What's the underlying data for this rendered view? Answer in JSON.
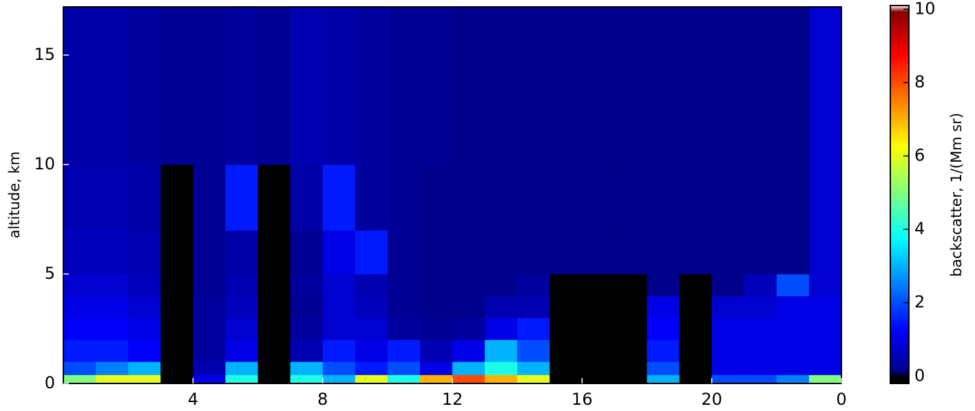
{
  "chart_data": {
    "type": "heatmap",
    "ylabel": "altitude, km",
    "colormap": "jet",
    "x_edges": [
      0,
      1,
      2,
      3,
      4,
      5,
      6,
      7,
      8,
      9,
      10,
      11,
      12,
      13,
      14,
      15,
      16,
      17,
      18,
      19,
      20,
      21,
      22,
      23,
      24
    ],
    "y_edges": [
      0,
      0.4,
      1,
      2,
      3,
      4,
      5,
      7,
      10,
      17.2
    ],
    "values": [
      [
        5,
        2,
        1.5,
        1.2,
        1,
        0.8,
        0.6,
        0.5,
        0.4
      ],
      [
        6,
        2.5,
        1.5,
        1.2,
        1,
        0.8,
        0.6,
        0.5,
        0.4
      ],
      [
        6,
        3,
        1.2,
        1,
        0.8,
        0.6,
        0.5,
        0.4,
        0.3
      ],
      [
        0,
        0,
        0,
        0,
        0,
        0,
        0,
        0,
        0.2
      ],
      [
        1,
        0.5,
        0.3,
        0.3,
        0.3,
        0.2,
        0.2,
        0.2,
        0.2
      ],
      [
        4,
        3,
        1,
        0.8,
        0.6,
        0.5,
        0.4,
        1.5,
        0.3
      ],
      [
        0,
        0,
        0,
        0,
        0,
        0,
        0,
        0,
        0.2
      ],
      [
        4,
        3,
        0.5,
        0.3,
        0.2,
        0.3,
        0.2,
        0.4,
        0.5
      ],
      [
        3,
        2,
        1.5,
        0.8,
        0.8,
        0.8,
        1,
        1.5,
        0.4
      ],
      [
        6,
        1.5,
        1,
        0.8,
        0.6,
        0.5,
        1.5,
        0.3,
        0.3
      ],
      [
        4,
        2,
        1.5,
        0.3,
        0.2,
        0.2,
        0.2,
        0.2,
        0.2
      ],
      [
        7,
        1,
        0.5,
        0.2,
        0.1,
        0.1,
        0.1,
        0.1,
        0.2
      ],
      [
        8,
        3,
        1,
        0.3,
        0.1,
        0.1,
        0.1,
        0.1,
        0.1
      ],
      [
        7,
        4,
        3,
        1,
        0.5,
        0.1,
        0.1,
        0.1,
        0.1
      ],
      [
        6,
        3,
        2,
        1.5,
        0.5,
        0.3,
        0.1,
        0.1,
        0.1
      ],
      [
        0,
        0,
        0,
        0,
        0,
        0,
        0.1,
        0.1,
        0.1
      ],
      [
        0,
        0,
        0,
        0,
        0,
        0,
        0.1,
        0.1,
        0.1
      ],
      [
        0,
        0,
        0,
        0,
        0,
        0,
        0.1,
        0.1,
        0.1
      ],
      [
        3,
        2,
        1.5,
        1.2,
        1,
        0.1,
        0.1,
        0.1,
        0.1
      ],
      [
        0,
        0,
        0,
        0,
        0,
        0,
        0.1,
        0.1,
        0.1
      ],
      [
        2,
        1,
        1,
        1,
        0.8,
        0.1,
        0.1,
        0.1,
        0.1
      ],
      [
        2,
        1,
        1,
        1,
        0.8,
        0.6,
        0.1,
        0.1,
        0.1
      ],
      [
        2.5,
        1,
        1,
        1,
        1,
        2,
        0.1,
        0.1,
        0.1
      ],
      [
        5,
        1,
        1,
        1,
        1,
        0.8,
        0.8,
        0.8,
        0.8
      ]
    ],
    "xlim": [
      0,
      24
    ],
    "xticks": [
      4,
      8,
      12,
      16,
      20,
      {
        "value": 24,
        "label": "0"
      }
    ],
    "ylim": [
      0,
      17.2
    ],
    "yticks": [
      0,
      5,
      10,
      15
    ],
    "colorbar": {
      "label": "backscatter, 1/(Mm sr)",
      "lim": [
        -0.2,
        10.1
      ],
      "ticks": [
        0,
        2,
        4,
        6,
        8,
        10
      ]
    }
  }
}
